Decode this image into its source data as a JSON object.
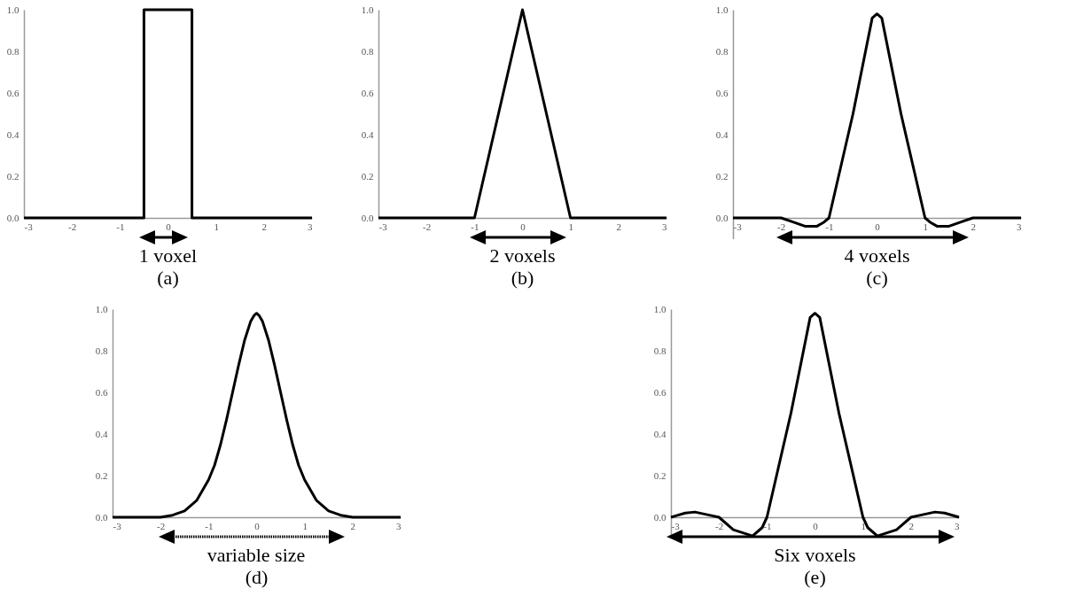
{
  "chart_data": [
    {
      "type": "line",
      "title": "(a)",
      "x": [
        -3,
        -0.5,
        -0.5,
        0.5,
        0.5,
        3
      ],
      "values": [
        0,
        0,
        1,
        1,
        0,
        0
      ],
      "color": "#000000",
      "xlim": [
        -3,
        3
      ],
      "xticks": [
        -3,
        -2,
        -1,
        0,
        1,
        2,
        3
      ],
      "ylim": [
        0,
        1
      ],
      "yticks": [
        {
          "value": 0,
          "label": "0.0"
        },
        {
          "value": 0.2,
          "label": "0.2"
        },
        {
          "value": 0.4,
          "label": "0.4"
        },
        {
          "value": 0.6,
          "label": "0.6"
        },
        {
          "value": 0.8,
          "label": "0.8"
        },
        {
          "value": 1,
          "label": "1.0"
        }
      ],
      "annotations": [
        "1 voxel"
      ]
    },
    {
      "type": "line",
      "title": "(b)",
      "x": [
        -3,
        -1,
        0,
        1,
        3
      ],
      "values": [
        0,
        0,
        1,
        0,
        0
      ],
      "color": "#000000",
      "xlim": [
        -3,
        3
      ],
      "xticks": [
        -3,
        -2,
        -1,
        0,
        1,
        2,
        3
      ],
      "ylim": [
        0,
        1
      ],
      "yticks": [
        {
          "value": 0,
          "label": "0.0"
        },
        {
          "value": 0.2,
          "label": "0.2"
        },
        {
          "value": 0.4,
          "label": "0.4"
        },
        {
          "value": 0.6,
          "label": "0.6"
        },
        {
          "value": 0.8,
          "label": "0.8"
        },
        {
          "value": 1,
          "label": "1.0"
        }
      ],
      "annotations": [
        "2 voxels"
      ]
    },
    {
      "type": "line",
      "title": "(c)",
      "x": [
        -3,
        -2,
        -1.75,
        -1.5,
        -1.25,
        -1.1,
        -1,
        -0.5,
        -0.1,
        0,
        0.1,
        0.5,
        1,
        1.1,
        1.25,
        1.5,
        1.75,
        2,
        3
      ],
      "values": [
        0,
        0,
        -0.02,
        -0.04,
        -0.04,
        -0.02,
        0,
        0.5,
        0.96,
        0.98,
        0.96,
        0.5,
        0,
        -0.02,
        -0.04,
        -0.04,
        -0.02,
        0,
        0
      ],
      "color": "#000000",
      "xlim": [
        -3,
        3
      ],
      "xticks": [
        -3,
        -2,
        -1,
        0,
        1,
        2,
        3
      ],
      "ylim": [
        -0.1,
        1
      ],
      "yticks": [
        {
          "value": 0,
          "label": "0.0"
        },
        {
          "value": 0.2,
          "label": "0.2"
        },
        {
          "value": 0.4,
          "label": "0.4"
        },
        {
          "value": 0.6,
          "label": "0.6"
        },
        {
          "value": 0.8,
          "label": "0.8"
        },
        {
          "value": 1,
          "label": "1.0"
        }
      ],
      "annotations": [
        "4 voxels"
      ]
    },
    {
      "type": "line",
      "title": "(d)",
      "x": [
        -3,
        -2,
        -1.75,
        -1.5,
        -1.25,
        -1,
        -0.875,
        -0.75,
        -0.625,
        -0.5,
        -0.375,
        -0.25,
        -0.125,
        -0.05,
        0,
        0.05,
        0.125,
        0.25,
        0.375,
        0.5,
        0.625,
        0.75,
        0.875,
        1,
        1.25,
        1.5,
        1.75,
        2,
        3
      ],
      "values": [
        0,
        0,
        0.01,
        0.03,
        0.08,
        0.18,
        0.25,
        0.35,
        0.47,
        0.6,
        0.73,
        0.85,
        0.94,
        0.97,
        0.98,
        0.97,
        0.94,
        0.85,
        0.73,
        0.6,
        0.47,
        0.35,
        0.25,
        0.18,
        0.08,
        0.03,
        0.01,
        0,
        0
      ],
      "color": "#000000",
      "xlim": [
        -3,
        3
      ],
      "xticks": [
        -3,
        -2,
        -1,
        0,
        1,
        2,
        3
      ],
      "ylim": [
        0,
        1
      ],
      "yticks": [
        {
          "value": 0,
          "label": "0.0"
        },
        {
          "value": 0.2,
          "label": "0.2"
        },
        {
          "value": 0.4,
          "label": "0.4"
        },
        {
          "value": 0.6,
          "label": "0.6"
        },
        {
          "value": 0.8,
          "label": "0.8"
        },
        {
          "value": 1,
          "label": "1.0"
        }
      ],
      "annotations": [
        "variable size"
      ]
    },
    {
      "type": "line",
      "title": "(e)",
      "x": [
        -3,
        -2.7,
        -2.5,
        -2.2,
        -2,
        -1.7,
        -1.3,
        -1.1,
        -1,
        -0.5,
        -0.1,
        0,
        0.1,
        0.5,
        1,
        1.1,
        1.3,
        1.7,
        2,
        2.2,
        2.5,
        2.7,
        3
      ],
      "values": [
        0,
        0.02,
        0.025,
        0.01,
        0,
        -0.06,
        -0.09,
        -0.05,
        0,
        0.5,
        0.96,
        0.98,
        0.96,
        0.5,
        0,
        -0.05,
        -0.09,
        -0.06,
        0,
        0.01,
        0.025,
        0.02,
        0
      ],
      "color": "#000000",
      "xlim": [
        -3,
        3
      ],
      "xticks": [
        -3,
        -2,
        -1,
        0,
        1,
        2,
        3
      ],
      "ylim": [
        -0.1,
        1
      ],
      "yticks": [
        {
          "value": 0,
          "label": "0.0"
        },
        {
          "value": 0.2,
          "label": "0.2"
        },
        {
          "value": 0.4,
          "label": "0.4"
        },
        {
          "value": 0.6,
          "label": "0.6"
        },
        {
          "value": 0.8,
          "label": "0.8"
        },
        {
          "value": 1,
          "label": "1.0"
        }
      ],
      "annotations": [
        "Six voxels"
      ]
    }
  ]
}
